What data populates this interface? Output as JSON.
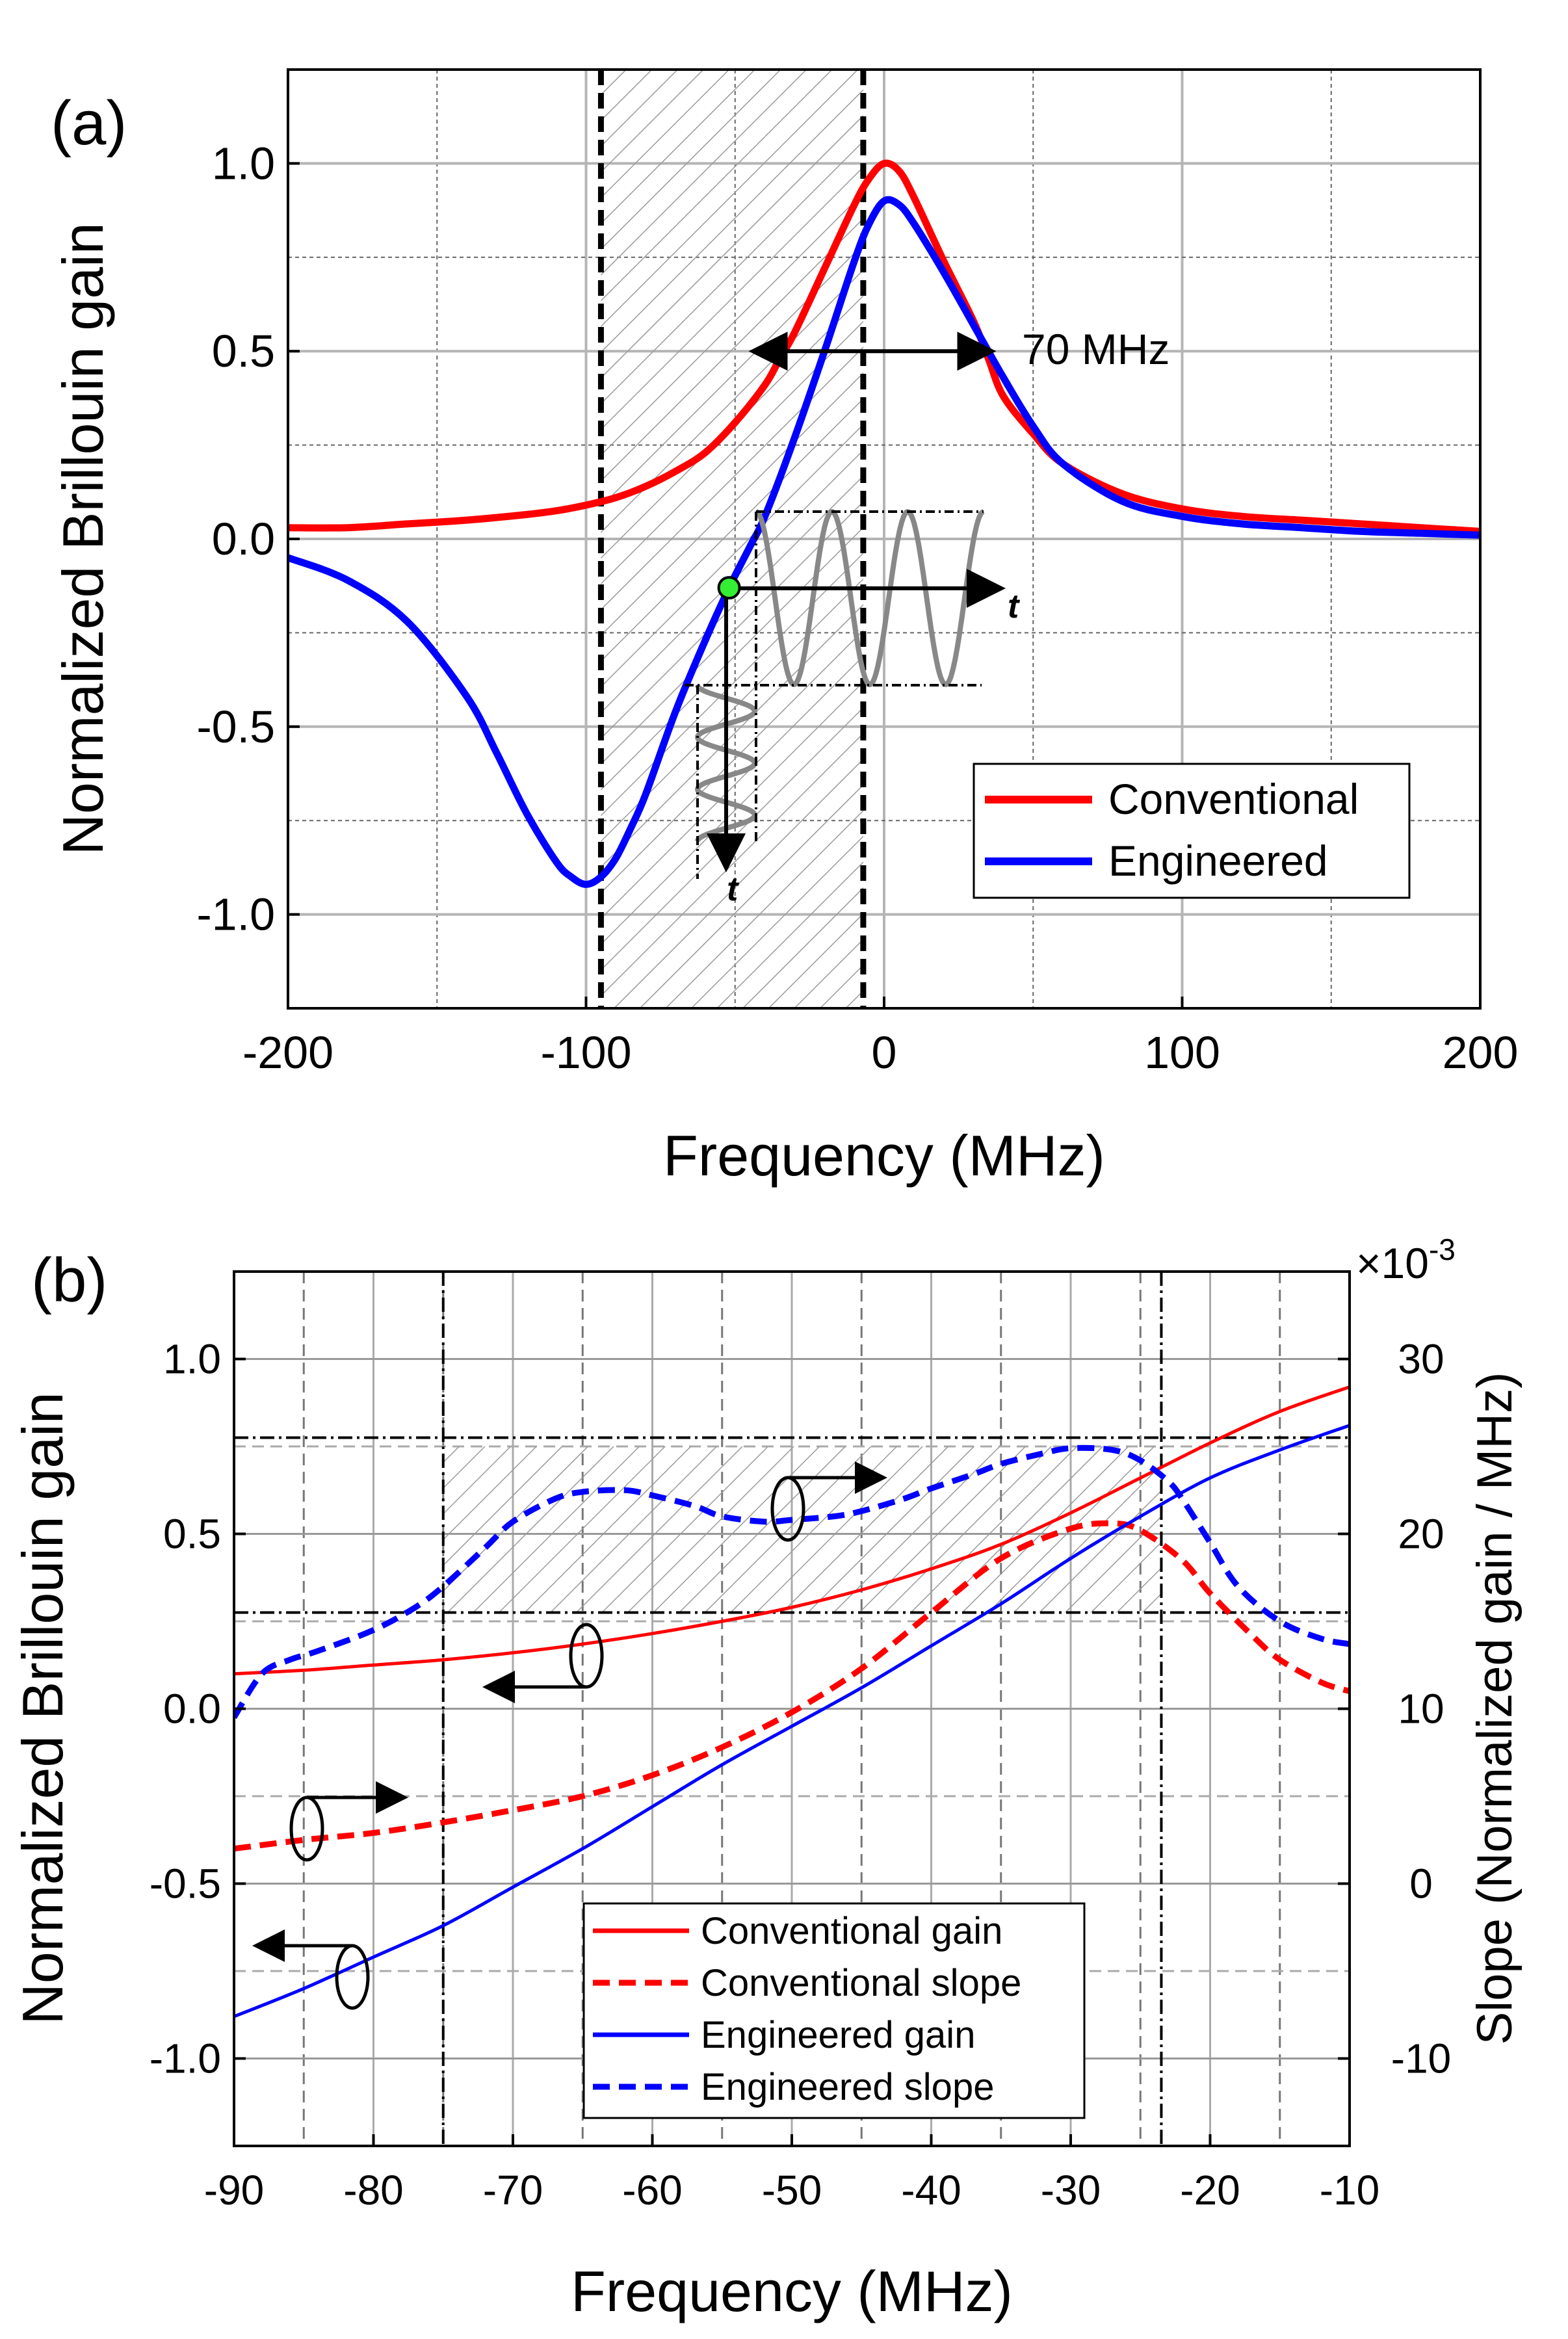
{
  "chart_data": [
    {
      "id": "a",
      "type": "line",
      "panel_label": "(a)",
      "xlabel": "Frequency (MHz)",
      "ylabel": "Normalized Brillouin gain",
      "xlim": [
        -200,
        200
      ],
      "ylim": [
        -1.25,
        1.25
      ],
      "xticks": [
        -200,
        -100,
        0,
        100,
        200
      ],
      "xtick_labels": [
        "-200",
        "-100",
        "0",
        "100",
        "200"
      ],
      "yticks": [
        -1.0,
        -0.5,
        0.0,
        0.5,
        1.0
      ],
      "ytick_labels": [
        "-1.0",
        "-0.5",
        "0.0",
        "0.5",
        "1.0"
      ],
      "grid": true,
      "legend_position": "lower-right",
      "series": [
        {
          "name": "Conventional",
          "color": "#ff0000",
          "x": [
            -200,
            -180,
            -160,
            -140,
            -120,
            -110,
            -100,
            -90,
            -80,
            -70,
            -60,
            -50,
            -40,
            -35,
            -30,
            -20,
            -10,
            -5,
            0,
            5,
            10,
            20,
            30,
            35,
            40,
            50,
            60,
            80,
            100,
            120,
            140,
            160,
            180,
            200
          ],
          "y": [
            0.03,
            0.03,
            0.04,
            0.05,
            0.065,
            0.075,
            0.09,
            0.11,
            0.14,
            0.18,
            0.23,
            0.31,
            0.41,
            0.48,
            0.55,
            0.72,
            0.89,
            0.96,
            1.0,
            0.98,
            0.91,
            0.74,
            0.58,
            0.48,
            0.38,
            0.28,
            0.2,
            0.12,
            0.08,
            0.06,
            0.05,
            0.04,
            0.03,
            0.02
          ]
        },
        {
          "name": "Engineered",
          "color": "#0000ff",
          "x": [
            -200,
            -180,
            -160,
            -140,
            -130,
            -120,
            -110,
            -105,
            -100,
            -95,
            -90,
            -85,
            -80,
            -70,
            -60,
            -52,
            -45,
            -40,
            -30,
            -20,
            -10,
            -5,
            0,
            5,
            10,
            20,
            30,
            40,
            50,
            60,
            80,
            100,
            120,
            140,
            160,
            180,
            200
          ],
          "y": [
            -0.05,
            -0.11,
            -0.22,
            -0.42,
            -0.57,
            -0.73,
            -0.86,
            -0.9,
            -0.92,
            -0.9,
            -0.85,
            -0.77,
            -0.68,
            -0.46,
            -0.27,
            -0.13,
            -0.02,
            0.06,
            0.27,
            0.5,
            0.74,
            0.84,
            0.9,
            0.89,
            0.84,
            0.71,
            0.57,
            0.43,
            0.3,
            0.2,
            0.1,
            0.06,
            0.04,
            0.03,
            0.02,
            0.015,
            0.01
          ]
        }
      ],
      "shaded_region_x": [
        -95,
        -7
      ],
      "annotations": {
        "fwhm_label": "70 MHz",
        "fwhm_arrow_x": [
          -35,
          35
        ],
        "fwhm_arrow_y": 0.5,
        "operating_point": {
          "x": -52,
          "y": -0.13,
          "color": "#33ee33"
        },
        "time_axis_label": "t"
      }
    },
    {
      "id": "b",
      "type": "line",
      "panel_label": "(b)",
      "xlabel": "Frequency (MHz)",
      "ylabel": "Normalized Brillouin gain",
      "ylabel_right": "Slope (Normalized gain / MHz)",
      "right_axis_multiplier": "×10",
      "right_axis_exponent": "-3",
      "xlim": [
        -90,
        -10
      ],
      "ylim": [
        -1.25,
        1.25
      ],
      "ylim_right": [
        -15,
        35
      ],
      "xticks": [
        -90,
        -80,
        -70,
        -60,
        -50,
        -40,
        -30,
        -20,
        -10
      ],
      "xtick_labels": [
        "-90",
        "-80",
        "-70",
        "-60",
        "-50",
        "-40",
        "-30",
        "-20",
        "-10"
      ],
      "yticks": [
        -1.0,
        -0.5,
        0.0,
        0.5,
        1.0
      ],
      "ytick_labels": [
        "-1.0",
        "-0.5",
        "0.0",
        "0.5",
        "1.0"
      ],
      "yticks_right": [
        -10,
        0,
        10,
        20,
        30
      ],
      "ytick_labels_right": [
        "-10",
        "0",
        "10",
        "20",
        "30"
      ],
      "grid": true,
      "legend_position": "bottom-center",
      "series": [
        {
          "name": "Conventional gain",
          "color": "#ff0000",
          "dash": "solid",
          "axis": "left",
          "x": [
            -90,
            -85,
            -80,
            -75,
            -70,
            -65,
            -60,
            -55,
            -50,
            -45,
            -40,
            -35,
            -30,
            -25,
            -20,
            -15,
            -10
          ],
          "y": [
            0.1,
            0.11,
            0.125,
            0.14,
            0.16,
            0.185,
            0.215,
            0.25,
            0.29,
            0.34,
            0.4,
            0.47,
            0.56,
            0.66,
            0.76,
            0.85,
            0.92
          ]
        },
        {
          "name": "Conventional slope",
          "color": "#ff0000",
          "dash": "dashed",
          "axis": "right",
          "x": [
            -90,
            -85,
            -80,
            -75,
            -70,
            -65,
            -60,
            -55,
            -50,
            -45,
            -40,
            -35,
            -30,
            -27,
            -25,
            -22,
            -20,
            -17,
            -15,
            -12,
            -10
          ],
          "y": [
            2.0,
            2.5,
            2.9,
            3.5,
            4.2,
            5.0,
            6.2,
            7.8,
            9.8,
            12.3,
            15.5,
            18.6,
            20.3,
            20.6,
            20.2,
            18.5,
            16.6,
            14.2,
            12.8,
            11.5,
            11.0
          ]
        },
        {
          "name": "Engineered gain",
          "color": "#0000ff",
          "dash": "solid",
          "axis": "left",
          "x": [
            -90,
            -85,
            -80,
            -75,
            -70,
            -65,
            -60,
            -55,
            -50,
            -45,
            -40,
            -35,
            -30,
            -25,
            -20,
            -15,
            -10
          ],
          "y": [
            -0.88,
            -0.8,
            -0.71,
            -0.62,
            -0.51,
            -0.4,
            -0.28,
            -0.16,
            -0.05,
            0.06,
            0.18,
            0.3,
            0.43,
            0.55,
            0.66,
            0.74,
            0.81
          ]
        },
        {
          "name": "Engineered slope",
          "color": "#0000ff",
          "dash": "dashed",
          "axis": "right",
          "x": [
            -90,
            -88,
            -86,
            -84,
            -80,
            -77,
            -75,
            -72,
            -70,
            -67,
            -65,
            -62,
            -60,
            -57,
            -55,
            -52,
            -50,
            -47,
            -45,
            -42,
            -40,
            -37,
            -35,
            -32,
            -30,
            -27,
            -25,
            -23,
            -22,
            -20,
            -18,
            -15,
            -12,
            -10
          ],
          "y": [
            9.5,
            12.0,
            12.8,
            13.3,
            14.5,
            15.8,
            17.0,
            19.2,
            20.7,
            22.0,
            22.4,
            22.5,
            22.2,
            21.6,
            21.0,
            20.7,
            20.8,
            21.0,
            21.3,
            22.0,
            22.6,
            23.4,
            24.0,
            24.6,
            24.9,
            24.8,
            24.2,
            23.0,
            22.0,
            19.5,
            17.0,
            15.0,
            14.0,
            13.7
          ]
        }
      ],
      "vertical_dashdot_x": [
        -75,
        -23.5
      ],
      "shaded_box": {
        "x": [
          -75,
          -23.5
        ],
        "y_right": [
          15.5,
          25
        ]
      },
      "horizontal_dashdot_y_right": [
        15.5,
        25.5
      ]
    }
  ]
}
